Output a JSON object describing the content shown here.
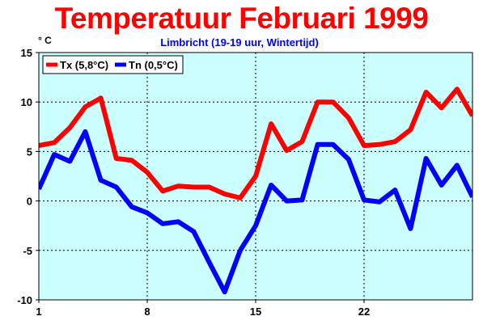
{
  "title": "Temperatuur Februari 1999",
  "chart_data": {
    "type": "line",
    "subtitle": "Limbricht (19-19 uur, Wintertijd)",
    "ylabel": "° C",
    "xlabel": "",
    "x": [
      1,
      2,
      3,
      4,
      5,
      6,
      7,
      8,
      9,
      10,
      11,
      12,
      13,
      14,
      15,
      16,
      17,
      18,
      19,
      20,
      21,
      22,
      23,
      24,
      25,
      26,
      27,
      28,
      29
    ],
    "xlim": [
      1,
      29
    ],
    "ylim": [
      -10,
      15
    ],
    "xticks": [
      1,
      8,
      15,
      22
    ],
    "yticks": [
      -10,
      -5,
      0,
      5,
      10,
      15
    ],
    "grid": true,
    "legend_position": "top-left",
    "series": [
      {
        "name": "Tx (5,8°C)",
        "color": "#ff0000",
        "values": [
          5.6,
          5.9,
          7.4,
          9.5,
          10.4,
          4.3,
          4.1,
          2.9,
          1.0,
          1.5,
          1.4,
          1.4,
          0.7,
          0.3,
          2.5,
          7.8,
          5.1,
          6.0,
          10.0,
          10.0,
          8.4,
          5.6,
          5.7,
          6.0,
          7.2,
          11.0,
          9.4,
          11.3,
          8.6
        ]
      },
      {
        "name": "Tn (0,5°C)",
        "color": "#0000ff",
        "values": [
          1.2,
          4.7,
          4.0,
          7.0,
          2.1,
          1.4,
          -0.6,
          -1.2,
          -2.3,
          -2.1,
          -3.1,
          -6.2,
          -9.2,
          -5.0,
          -2.5,
          1.6,
          0.0,
          0.1,
          5.7,
          5.7,
          4.2,
          0.1,
          -0.1,
          1.1,
          -2.8,
          4.3,
          1.6,
          3.6,
          0.4
        ]
      }
    ],
    "colors": {
      "plot_background": "#ccffff",
      "grid": "#000000",
      "title": "#ff0000",
      "subtitle": "#0000ff"
    }
  }
}
